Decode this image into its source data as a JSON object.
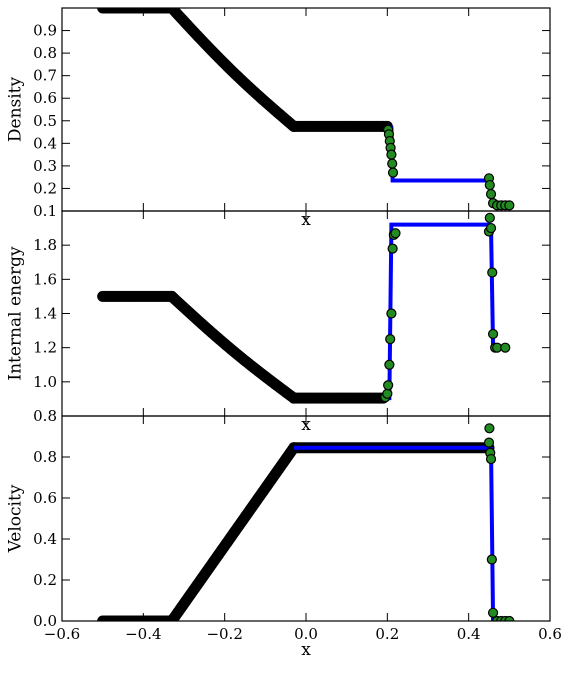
{
  "chart_data": [
    {
      "type": "line",
      "panel": "density",
      "ylabel": "Density",
      "xlabel": "x",
      "xlim": [
        -0.6,
        0.6
      ],
      "ylim": [
        0.1,
        1.0
      ],
      "yticks": [
        "0.1",
        "0.2",
        "0.3",
        "0.4",
        "0.5",
        "0.6",
        "0.7",
        "0.8",
        "0.9"
      ],
      "xticks": [],
      "series": [
        {
          "kind": "markers",
          "color": "#000000",
          "x": [
            -0.5,
            -0.33,
            -0.03,
            0.2
          ],
          "y": [
            1.0,
            1.0,
            0.475,
            0.475
          ]
        },
        {
          "kind": "line",
          "color": "#0000ff",
          "x": [
            0.2,
            0.21,
            0.213,
            0.45,
            0.455,
            0.46,
            0.5
          ],
          "y": [
            0.475,
            0.47,
            0.235,
            0.235,
            0.2,
            0.125,
            0.125
          ]
        },
        {
          "kind": "markers",
          "color": "#228b22",
          "x": [
            0.202,
            0.204,
            0.206,
            0.208,
            0.21,
            0.212,
            0.214,
            0.45,
            0.452,
            0.455,
            0.46,
            0.47,
            0.48,
            0.49,
            0.5
          ],
          "y": [
            0.46,
            0.44,
            0.41,
            0.38,
            0.35,
            0.31,
            0.27,
            0.245,
            0.215,
            0.175,
            0.135,
            0.125,
            0.125,
            0.125,
            0.125
          ]
        }
      ]
    },
    {
      "type": "line",
      "panel": "internal-energy",
      "ylabel": "Internal energy",
      "xlabel": "x",
      "xlim": [
        -0.6,
        0.6
      ],
      "ylim": [
        0.8,
        2.0
      ],
      "yticks": [
        "0.8",
        "1.0",
        "1.2",
        "1.4",
        "1.6",
        "1.8"
      ],
      "xticks": [],
      "series": [
        {
          "kind": "markers",
          "color": "#000000",
          "x": [
            -0.5,
            -0.33,
            -0.03,
            0.19
          ],
          "y": [
            1.5,
            1.5,
            0.905,
            0.905
          ]
        },
        {
          "kind": "line",
          "color": "#0000ff",
          "x": [
            0.2,
            0.205,
            0.21,
            0.45,
            0.455,
            0.46,
            0.5
          ],
          "y": [
            0.905,
            0.905,
            1.92,
            1.92,
            1.9,
            1.2,
            1.2
          ]
        },
        {
          "kind": "markers",
          "color": "#228b22",
          "x": [
            0.195,
            0.2,
            0.202,
            0.205,
            0.207,
            0.21,
            0.213,
            0.216,
            0.22,
            0.45,
            0.452,
            0.455,
            0.458,
            0.46,
            0.465,
            0.47,
            0.49
          ],
          "y": [
            0.91,
            0.93,
            0.98,
            1.1,
            1.25,
            1.4,
            1.78,
            1.86,
            1.87,
            1.88,
            1.96,
            1.9,
            1.64,
            1.28,
            1.2,
            1.2,
            1.2
          ]
        }
      ]
    },
    {
      "type": "line",
      "panel": "velocity",
      "ylabel": "Velocity",
      "xlabel": "x",
      "xlim": [
        -0.6,
        0.6
      ],
      "ylim": [
        0.0,
        1.0
      ],
      "yticks": [
        "0.0",
        "0.2",
        "0.4",
        "0.6",
        "0.8"
      ],
      "xticks": [
        "−0.6",
        "−0.4",
        "−0.2",
        "0.0",
        "0.2",
        "0.4",
        "0.6"
      ],
      "series": [
        {
          "kind": "markers",
          "color": "#000000",
          "x": [
            -0.5,
            -0.33,
            -0.03,
            0.45
          ],
          "y": [
            0.0,
            0.0,
            0.845,
            0.845
          ]
        },
        {
          "kind": "line",
          "color": "#0000ff",
          "x": [
            -0.03,
            0.45,
            0.455,
            0.46,
            0.5
          ],
          "y": [
            0.845,
            0.845,
            0.84,
            0.0,
            0.0
          ]
        },
        {
          "kind": "markers",
          "color": "#228b22",
          "x": [
            0.45,
            0.451,
            0.453,
            0.455,
            0.457,
            0.46,
            0.47,
            0.48,
            0.49,
            0.5
          ],
          "y": [
            0.87,
            0.94,
            0.82,
            0.79,
            0.3,
            0.04,
            0.0,
            0.0,
            0.0,
            0.0
          ]
        }
      ]
    }
  ]
}
